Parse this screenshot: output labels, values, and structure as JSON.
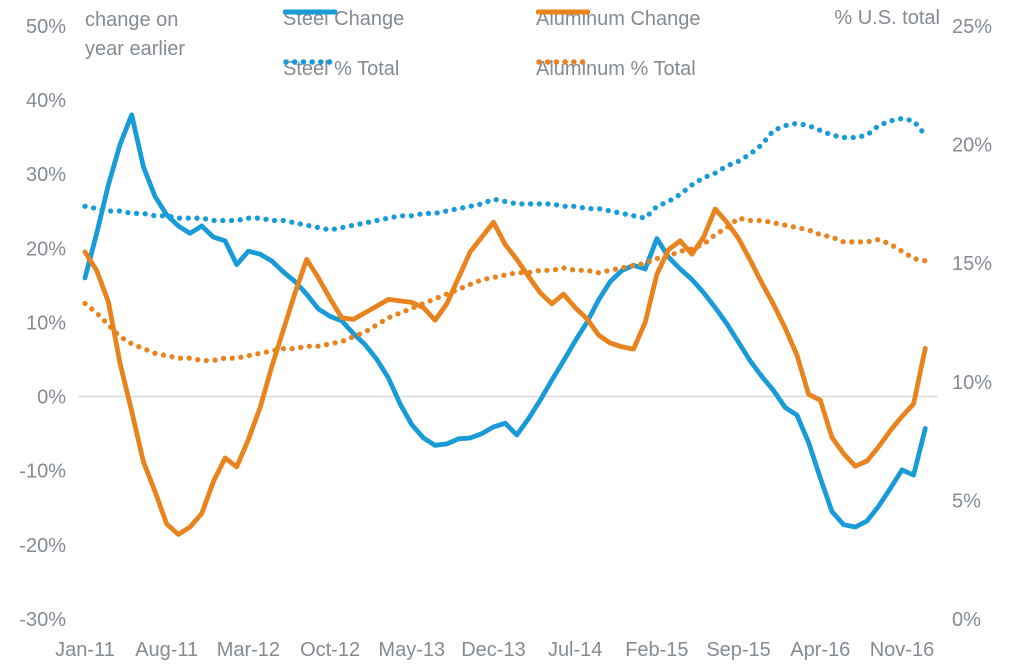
{
  "annotations": {
    "left_axis_note_line1": "change on",
    "left_axis_note_line2": "year earlier",
    "right_axis_note": "% U.S. total"
  },
  "chart_data": {
    "type": "line",
    "title": "",
    "legend_position": "top",
    "grid": "zero-baseline-only",
    "colors": {
      "steel_blue": "#199bd7",
      "aluminum_orange": "#e8831e",
      "axis_text": "#848b92",
      "zero_line": "#d9d9d9"
    },
    "months": [
      "Jan-11",
      "Feb-11",
      "Mar-11",
      "Apr-11",
      "May-11",
      "Jun-11",
      "Jul-11",
      "Aug-11",
      "Sep-11",
      "Oct-11",
      "Nov-11",
      "Dec-11",
      "Jan-12",
      "Feb-12",
      "Mar-12",
      "Apr-12",
      "May-12",
      "Jun-12",
      "Jul-12",
      "Aug-12",
      "Sep-12",
      "Oct-12",
      "Nov-12",
      "Dec-12",
      "Jan-13",
      "Feb-13",
      "Mar-13",
      "Apr-13",
      "May-13",
      "Jun-13",
      "Jul-13",
      "Aug-13",
      "Sep-13",
      "Oct-13",
      "Nov-13",
      "Dec-13",
      "Jan-14",
      "Feb-14",
      "Mar-14",
      "Apr-14",
      "May-14",
      "Jun-14",
      "Jul-14",
      "Aug-14",
      "Sep-14",
      "Oct-14",
      "Nov-14",
      "Dec-14",
      "Jan-15",
      "Feb-15",
      "Mar-15",
      "Apr-15",
      "May-15",
      "Jun-15",
      "Jul-15",
      "Aug-15",
      "Sep-15",
      "Oct-15",
      "Nov-15",
      "Dec-15",
      "Jan-16",
      "Feb-16",
      "Mar-16",
      "Apr-16",
      "May-16",
      "Jun-16",
      "Jul-16",
      "Aug-16",
      "Sep-16",
      "Oct-16",
      "Nov-16",
      "Dec-16",
      "Jan-17"
    ],
    "x_tick_months": [
      0,
      7,
      14,
      21,
      28,
      35,
      42,
      49,
      56,
      63,
      70
    ],
    "x_tick_labels": [
      "Jan-11",
      "Aug-11",
      "Mar-12",
      "Oct-12",
      "May-13",
      "Dec-13",
      "Jul-14",
      "Feb-15",
      "Sep-15",
      "Apr-16",
      "Nov-16"
    ],
    "left_axis": {
      "note": "change on year earlier",
      "unit": "%",
      "ticks": [
        50,
        40,
        30,
        20,
        10,
        0,
        -10,
        -20,
        -30
      ],
      "range": [
        -30,
        50
      ]
    },
    "right_axis": {
      "note": "% U.S. total",
      "unit": "%",
      "ticks": [
        25,
        20,
        15,
        10,
        5,
        0
      ],
      "range": [
        0,
        25
      ]
    },
    "series": [
      {
        "name": "Steel Change",
        "style": "solid",
        "axis": "left",
        "color": "#199bd7",
        "values": [
          16,
          22,
          28.5,
          34,
          38,
          31,
          27,
          24.5,
          23,
          22,
          23,
          21.5,
          21,
          17.8,
          19.6,
          19.2,
          18.3,
          16.8,
          15.5,
          13.8,
          11.8,
          10.8,
          10.2,
          8.5,
          7,
          5,
          2.5,
          -1,
          -3.8,
          -5.6,
          -6.6,
          -6.4,
          -5.7,
          -5.6,
          -5,
          -4.1,
          -3.6,
          -5.2,
          -3,
          -0.5,
          2.2,
          4.8,
          7.5,
          10,
          13,
          15.5,
          17,
          17.7,
          17.2,
          21.3,
          18.8,
          17.2,
          15.8,
          14,
          12,
          9.8,
          7.3,
          4.8,
          2.7,
          0.8,
          -1.5,
          -2.5,
          -6.2,
          -11,
          -15.5,
          -17.3,
          -17.6,
          -16.8,
          -14.8,
          -12.4,
          -9.9,
          -10.6,
          -4.3
        ]
      },
      {
        "name": "Aluminum Change",
        "style": "solid",
        "axis": "left",
        "color": "#e8831e",
        "values": [
          19.5,
          17,
          12.8,
          4.5,
          -2,
          -8.8,
          -12.8,
          -17.2,
          -18.6,
          -17.6,
          -15.8,
          -11.5,
          -8.3,
          -9.5,
          -5.8,
          -1.5,
          4,
          9,
          14,
          18.5,
          16,
          13.2,
          10.6,
          10.4,
          11.3,
          12.2,
          13.1,
          12.9,
          12.7,
          12,
          10.3,
          12.5,
          16,
          19.5,
          21.5,
          23.5,
          20.5,
          18.5,
          16.2,
          14,
          12.5,
          13.8,
          12,
          10.5,
          8.3,
          7.2,
          6.7,
          6.4,
          10,
          16.5,
          19.8,
          21,
          19.2,
          21.5,
          25.3,
          23.5,
          21.3,
          18.4,
          15.3,
          12.4,
          9.2,
          5.6,
          0.3,
          -0.5,
          -5.5,
          -7.7,
          -9.4,
          -8.7,
          -6.8,
          -4.6,
          -2.7,
          -1,
          6.5
        ]
      },
      {
        "name": "Steel % Total",
        "style": "dotted",
        "axis": "right",
        "color": "#199bd7",
        "values": [
          17.4,
          17.3,
          17.2,
          17.2,
          17.1,
          17.1,
          17.0,
          17.0,
          16.9,
          16.9,
          16.9,
          16.8,
          16.8,
          16.8,
          16.9,
          16.9,
          16.8,
          16.8,
          16.7,
          16.6,
          16.5,
          16.4,
          16.5,
          16.6,
          16.7,
          16.8,
          16.9,
          17.0,
          17.0,
          17.1,
          17.1,
          17.2,
          17.3,
          17.4,
          17.5,
          17.7,
          17.6,
          17.5,
          17.5,
          17.5,
          17.5,
          17.4,
          17.4,
          17.3,
          17.3,
          17.2,
          17.1,
          17.0,
          16.9,
          17.4,
          17.6,
          17.9,
          18.3,
          18.6,
          18.8,
          19.1,
          19.3,
          19.6,
          20.0,
          20.6,
          20.8,
          20.9,
          20.8,
          20.6,
          20.4,
          20.3,
          20.3,
          20.4,
          20.8,
          21.0,
          21.1,
          21.0,
          20.4
        ]
      },
      {
        "name": "Aluminum % Total",
        "style": "dotted",
        "axis": "right",
        "color": "#e8831e",
        "values": [
          13.3,
          12.9,
          12.4,
          11.9,
          11.6,
          11.4,
          11.2,
          11.1,
          11.0,
          11.0,
          10.9,
          10.9,
          11.0,
          11.0,
          11.1,
          11.2,
          11.3,
          11.4,
          11.4,
          11.5,
          11.5,
          11.6,
          11.7,
          11.9,
          12.1,
          12.4,
          12.7,
          12.9,
          13.1,
          13.3,
          13.5,
          13.7,
          13.9,
          14.1,
          14.3,
          14.4,
          14.5,
          14.6,
          14.6,
          14.7,
          14.7,
          14.8,
          14.7,
          14.7,
          14.6,
          14.7,
          14.8,
          14.9,
          15.0,
          15.2,
          15.3,
          15.5,
          15.6,
          15.8,
          16.2,
          16.5,
          16.9,
          16.8,
          16.8,
          16.7,
          16.6,
          16.5,
          16.4,
          16.2,
          16.1,
          15.9,
          15.9,
          15.9,
          16.0,
          15.8,
          15.5,
          15.2,
          15.1
        ]
      }
    ]
  }
}
